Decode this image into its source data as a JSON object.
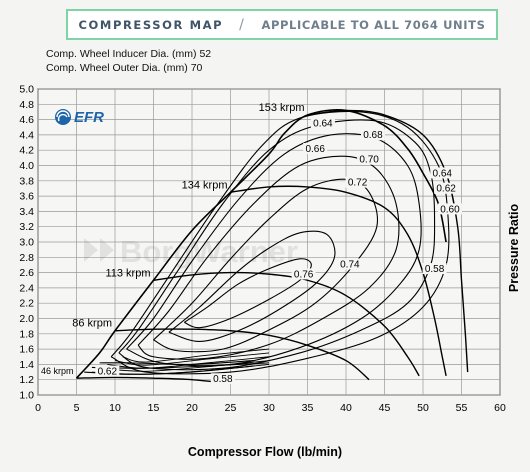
{
  "header": {
    "title": "COMPRESSOR MAP",
    "separator": "/",
    "subtitle": "APPLICABLE TO ALL 7064  UNITS"
  },
  "specs": [
    {
      "label": "Comp. Wheel Inducer Dia. (mm)",
      "value": "52"
    },
    {
      "label": "Comp. Wheel Outer Dia. (mm)",
      "value": "70"
    }
  ],
  "logo": {
    "text": "EFR",
    "watermark": "BorgWarner"
  },
  "chart_data": {
    "type": "line",
    "title": "",
    "xlabel": "Compressor Flow (lb/min)",
    "ylabel": "Pressure Ratio",
    "xlim": [
      0,
      60
    ],
    "ylim": [
      1.0,
      5.0
    ],
    "x_ticks": [
      0,
      5,
      10,
      15,
      20,
      25,
      30,
      35,
      40,
      45,
      50,
      55,
      60
    ],
    "y_ticks": [
      1.0,
      1.2,
      1.4,
      1.6,
      1.8,
      2.0,
      2.2,
      2.4,
      2.6,
      2.8,
      3.0,
      3.2,
      3.4,
      3.6,
      3.8,
      4.0,
      4.2,
      4.4,
      4.6,
      4.8,
      5.0
    ],
    "grid": true,
    "surge_line": [
      [
        5,
        1.22
      ],
      [
        8,
        1.55
      ],
      [
        10,
        1.84
      ],
      [
        15,
        2.5
      ],
      [
        20,
        3.15
      ],
      [
        25,
        3.65
      ],
      [
        30,
        4.15
      ],
      [
        32,
        4.42
      ],
      [
        35,
        4.66
      ],
      [
        40,
        4.72
      ],
      [
        45,
        4.52
      ],
      [
        48,
        4.22
      ],
      [
        50,
        3.9
      ],
      [
        52,
        3.5
      ],
      [
        53,
        3.0
      ]
    ],
    "speed_lines": [
      {
        "name": "46 krpm",
        "points": [
          [
            5,
            1.22
          ],
          [
            10,
            1.23
          ],
          [
            15,
            1.22
          ],
          [
            20,
            1.2
          ],
          [
            25,
            1.15
          ]
        ]
      },
      {
        "name": "86 krpm",
        "points": [
          [
            10,
            1.84
          ],
          [
            15,
            1.86
          ],
          [
            20,
            1.86
          ],
          [
            25,
            1.84
          ],
          [
            30,
            1.78
          ],
          [
            35,
            1.65
          ],
          [
            40,
            1.45
          ],
          [
            43,
            1.2
          ]
        ]
      },
      {
        "name": "113 krpm",
        "points": [
          [
            15,
            2.5
          ],
          [
            20,
            2.57
          ],
          [
            25,
            2.6
          ],
          [
            30,
            2.58
          ],
          [
            35,
            2.5
          ],
          [
            40,
            2.3
          ],
          [
            45,
            1.9
          ],
          [
            48,
            1.5
          ],
          [
            49.5,
            1.25
          ]
        ]
      },
      {
        "name": "134 krpm",
        "points": [
          [
            25,
            3.65
          ],
          [
            30,
            3.72
          ],
          [
            35,
            3.72
          ],
          [
            40,
            3.65
          ],
          [
            45,
            3.45
          ],
          [
            48,
            3.1
          ],
          [
            50,
            2.6
          ],
          [
            51.5,
            2.0
          ],
          [
            52.5,
            1.5
          ],
          [
            53,
            1.25
          ]
        ]
      },
      {
        "name": "153 krpm",
        "points": [
          [
            35,
            4.66
          ],
          [
            40,
            4.72
          ],
          [
            45,
            4.66
          ],
          [
            50,
            4.4
          ],
          [
            53,
            3.9
          ],
          [
            54.5,
            3.2
          ],
          [
            55,
            2.5
          ],
          [
            55.5,
            1.8
          ],
          [
            55.8,
            1.3
          ]
        ]
      }
    ],
    "efficiency_islands": [
      {
        "label": "0.76",
        "points": [
          [
            19,
            1.95
          ],
          [
            22,
            2.15
          ],
          [
            26,
            2.45
          ],
          [
            30,
            2.65
          ],
          [
            34,
            2.78
          ],
          [
            35.5,
            2.7
          ],
          [
            34,
            2.5
          ],
          [
            30,
            2.25
          ],
          [
            25,
            2.0
          ],
          [
            21,
            1.88
          ],
          [
            19,
            1.95
          ]
        ]
      },
      {
        "label": "0.74",
        "points": [
          [
            17,
            1.82
          ],
          [
            21,
            2.15
          ],
          [
            26,
            2.62
          ],
          [
            30,
            2.92
          ],
          [
            34,
            3.12
          ],
          [
            37.5,
            3.1
          ],
          [
            38.5,
            2.8
          ],
          [
            36,
            2.45
          ],
          [
            31,
            2.1
          ],
          [
            26,
            1.84
          ],
          [
            21,
            1.7
          ],
          [
            17,
            1.82
          ]
        ]
      },
      {
        "label": "0.72",
        "points": [
          [
            15,
            1.72
          ],
          [
            20,
            2.2
          ],
          [
            25,
            2.78
          ],
          [
            30,
            3.3
          ],
          [
            35,
            3.7
          ],
          [
            40,
            3.82
          ],
          [
            43,
            3.65
          ],
          [
            44,
            3.2
          ],
          [
            41,
            2.7
          ],
          [
            36,
            2.2
          ],
          [
            30,
            1.85
          ],
          [
            24,
            1.6
          ],
          [
            18,
            1.58
          ],
          [
            15,
            1.72
          ]
        ]
      },
      {
        "label": "0.70",
        "points": [
          [
            13,
            1.65
          ],
          [
            17,
            2.1
          ],
          [
            22,
            2.8
          ],
          [
            28,
            3.5
          ],
          [
            34,
            4.0
          ],
          [
            40,
            4.12
          ],
          [
            44,
            3.95
          ],
          [
            46.5,
            3.5
          ],
          [
            46.5,
            2.9
          ],
          [
            43,
            2.4
          ],
          [
            37,
            2.0
          ],
          [
            30,
            1.66
          ],
          [
            22,
            1.48
          ],
          [
            15,
            1.5
          ],
          [
            13,
            1.65
          ]
        ]
      },
      {
        "label": "0.68",
        "points": [
          [
            11.5,
            1.6
          ],
          [
            15,
            2.0
          ],
          [
            20,
            2.75
          ],
          [
            26,
            3.55
          ],
          [
            32,
            4.15
          ],
          [
            38,
            4.4
          ],
          [
            44,
            4.35
          ],
          [
            48,
            4.0
          ],
          [
            49.5,
            3.5
          ],
          [
            49.5,
            2.9
          ],
          [
            47,
            2.45
          ],
          [
            42,
            2.0
          ],
          [
            34,
            1.62
          ],
          [
            25,
            1.4
          ],
          [
            16,
            1.42
          ],
          [
            11.5,
            1.6
          ]
        ]
      },
      {
        "label": "0.66",
        "points": [
          [
            10.5,
            1.55
          ],
          [
            13,
            1.85
          ],
          [
            18,
            2.6
          ],
          [
            24,
            3.5
          ],
          [
            30,
            4.2
          ],
          [
            36,
            4.52
          ],
          [
            44,
            4.58
          ],
          [
            49,
            4.3
          ],
          [
            51,
            3.9
          ],
          [
            51.5,
            3.3
          ],
          [
            51,
            2.7
          ],
          [
            48,
            2.2
          ],
          [
            42,
            1.85
          ],
          [
            34,
            1.55
          ],
          [
            24,
            1.35
          ],
          [
            14,
            1.36
          ],
          [
            10.5,
            1.55
          ]
        ]
      },
      {
        "label": "0.64",
        "points": [
          [
            9.5,
            1.5
          ],
          [
            12,
            1.8
          ],
          [
            17,
            2.55
          ],
          [
            23,
            3.45
          ],
          [
            29,
            4.25
          ],
          [
            34,
            4.62
          ],
          [
            42,
            4.7
          ],
          [
            48,
            4.5
          ],
          [
            52,
            4.0
          ],
          [
            53.2,
            3.4
          ],
          [
            53,
            2.7
          ],
          [
            50,
            2.15
          ],
          [
            44,
            1.75
          ],
          [
            35,
            1.48
          ],
          [
            25,
            1.3
          ],
          [
            14,
            1.3
          ],
          [
            9.5,
            1.5
          ]
        ]
      },
      {
        "label": "0.62",
        "points": [
          [
            8,
            1.42
          ],
          [
            12,
            1.42
          ],
          [
            20,
            1.4
          ],
          [
            28,
            1.45
          ]
        ]
      },
      {
        "label": "0.60",
        "points": [
          [
            7,
            1.36
          ],
          [
            14,
            1.35
          ],
          [
            22,
            1.38
          ],
          [
            30,
            1.42
          ]
        ]
      },
      {
        "label": "0.58",
        "points": [
          [
            6,
            1.3
          ],
          [
            12,
            1.27
          ],
          [
            20,
            1.3
          ],
          [
            28,
            1.38
          ]
        ]
      }
    ],
    "efficiency_labels": [
      {
        "text": "0.64",
        "x": 37,
        "y": 4.52
      },
      {
        "text": "0.66",
        "x": 36,
        "y": 4.19
      },
      {
        "text": "0.68",
        "x": 43.5,
        "y": 4.37
      },
      {
        "text": "0.70",
        "x": 43,
        "y": 4.05
      },
      {
        "text": "0.72",
        "x": 41.5,
        "y": 3.75
      },
      {
        "text": "0.74",
        "x": 40.5,
        "y": 2.68
      },
      {
        "text": "0.76",
        "x": 34.5,
        "y": 2.55
      },
      {
        "text": "0.64",
        "x": 52.5,
        "y": 3.87
      },
      {
        "text": "0.62",
        "x": 53,
        "y": 3.67
      },
      {
        "text": "0.60",
        "x": 53.5,
        "y": 3.4
      },
      {
        "text": "0.58",
        "x": 51.5,
        "y": 2.62
      },
      {
        "text": "0.62",
        "x": 9,
        "y": 1.28
      },
      {
        "text": "0.58",
        "x": 24,
        "y": 1.18
      }
    ]
  }
}
